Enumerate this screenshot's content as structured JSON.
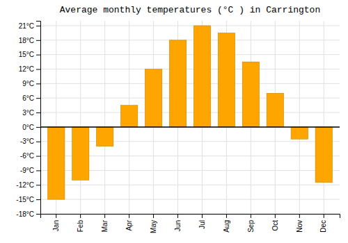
{
  "chart_data": {
    "type": "bar",
    "title": "Average monthly temperatures (°C ) in Carrington",
    "categories": [
      "Jan",
      "Feb",
      "Mar",
      "Apr",
      "May",
      "Jun",
      "Jul",
      "Aug",
      "Sep",
      "Oct",
      "Nov",
      "Dec"
    ],
    "values": [
      -15,
      -11,
      -4,
      4.5,
      12,
      18,
      21,
      19.5,
      13.5,
      7,
      -2.5,
      -11.5
    ],
    "color": "#FFA500",
    "ylim": [
      -18,
      22
    ],
    "yticks": [
      {
        "value": -18,
        "label": "-18°C"
      },
      {
        "value": -15,
        "label": "-15°C"
      },
      {
        "value": -12,
        "label": "-12°C"
      },
      {
        "value": -9,
        "label": "-9°C"
      },
      {
        "value": -6,
        "label": "-6°C"
      },
      {
        "value": -3,
        "label": "-3°C"
      },
      {
        "value": 0,
        "label": "0°C"
      },
      {
        "value": 3,
        "label": "3°C"
      },
      {
        "value": 6,
        "label": "6°C"
      },
      {
        "value": 9,
        "label": "9°C"
      },
      {
        "value": 12,
        "label": "12°C"
      },
      {
        "value": 15,
        "label": "15°C"
      },
      {
        "value": 18,
        "label": "18°C"
      },
      {
        "value": 21,
        "label": "21°C"
      }
    ],
    "grid": true
  }
}
